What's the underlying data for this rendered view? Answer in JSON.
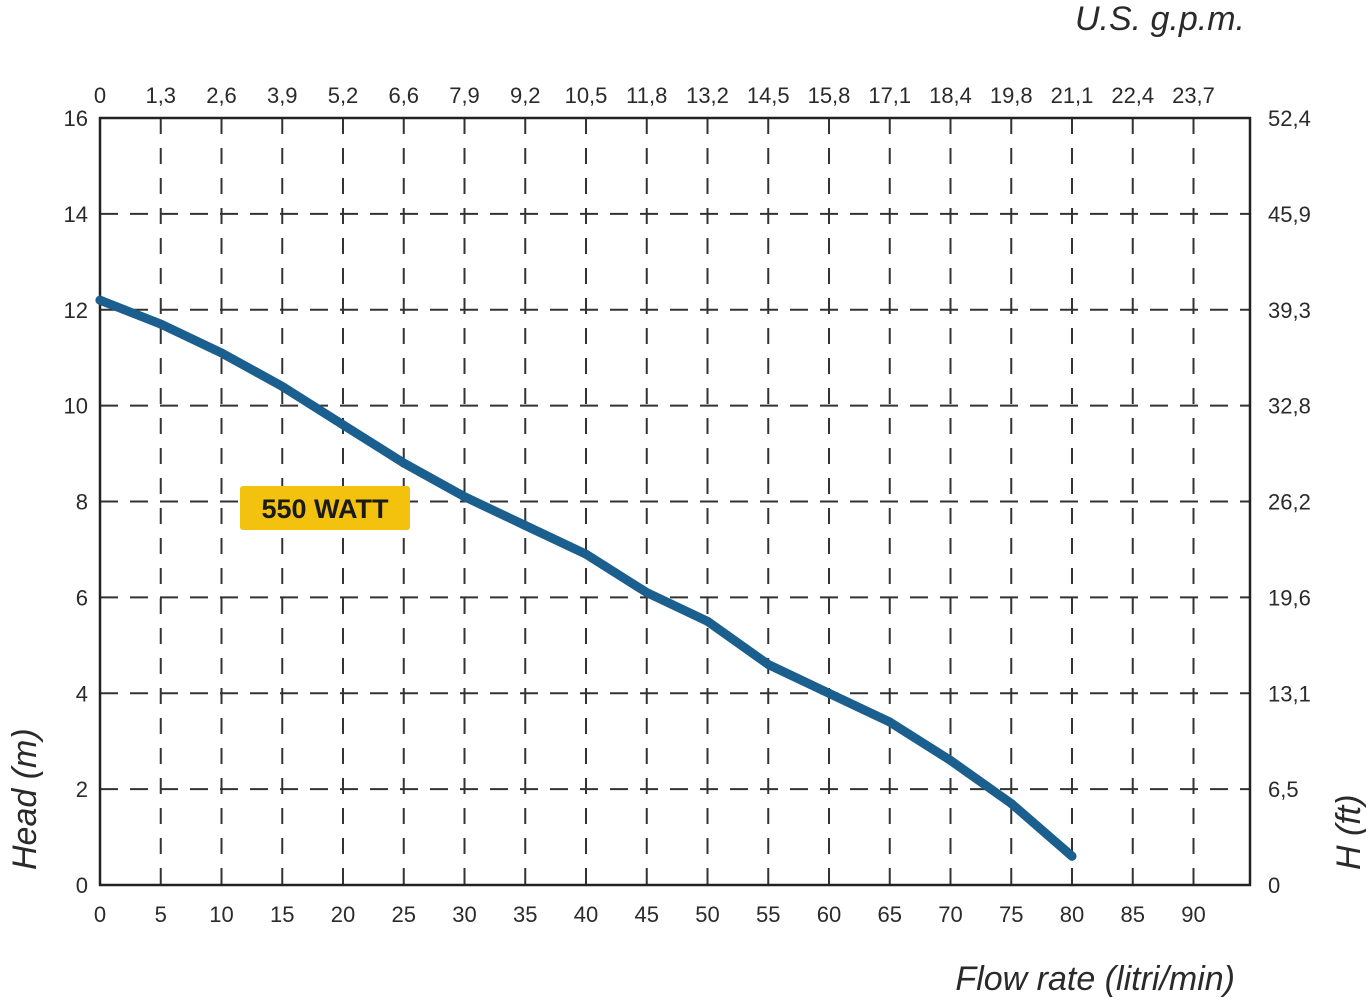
{
  "chart_data": {
    "type": "line",
    "title": "",
    "xlabel": "Flow rate (litri/min)",
    "ylabel": "Head (m)",
    "top_axis_label": "U.S. g.p.m.",
    "right_axis_label": "H (ft)",
    "xlim": [
      0,
      95
    ],
    "ylim": [
      0,
      16
    ],
    "grid": true,
    "x_ticks": [
      "0",
      "5",
      "10",
      "15",
      "20",
      "25",
      "30",
      "35",
      "40",
      "45",
      "50",
      "55",
      "60",
      "65",
      "70",
      "75",
      "80",
      "85",
      "90"
    ],
    "y_ticks": [
      "0",
      "2",
      "4",
      "6",
      "8",
      "10",
      "12",
      "14",
      "16"
    ],
    "top_ticks": [
      "0",
      "1,3",
      "2,6",
      "3,9",
      "5,2",
      "6,6",
      "7,9",
      "9,2",
      "10,5",
      "11,8",
      "13,2",
      "14,5",
      "15,8",
      "17,1",
      "18,4",
      "19,8",
      "21,1",
      "22,4",
      "23,7"
    ],
    "right_ticks": [
      "0",
      "6,5",
      "13,1",
      "19,6",
      "26,2",
      "32,8",
      "39,3",
      "45,9",
      "52,4"
    ],
    "series": [
      {
        "name": "550 WATT",
        "color": "#1b5f8e",
        "x": [
          0,
          5,
          10,
          15,
          20,
          25,
          30,
          35,
          40,
          45,
          50,
          55,
          60,
          65,
          70,
          75,
          80
        ],
        "y": [
          12.2,
          11.7,
          11.1,
          10.4,
          9.6,
          8.8,
          8.1,
          7.5,
          6.9,
          6.1,
          5.5,
          4.6,
          4.0,
          3.4,
          2.6,
          1.7,
          0.6
        ]
      }
    ],
    "annotation_bg": "#f2c20f"
  }
}
